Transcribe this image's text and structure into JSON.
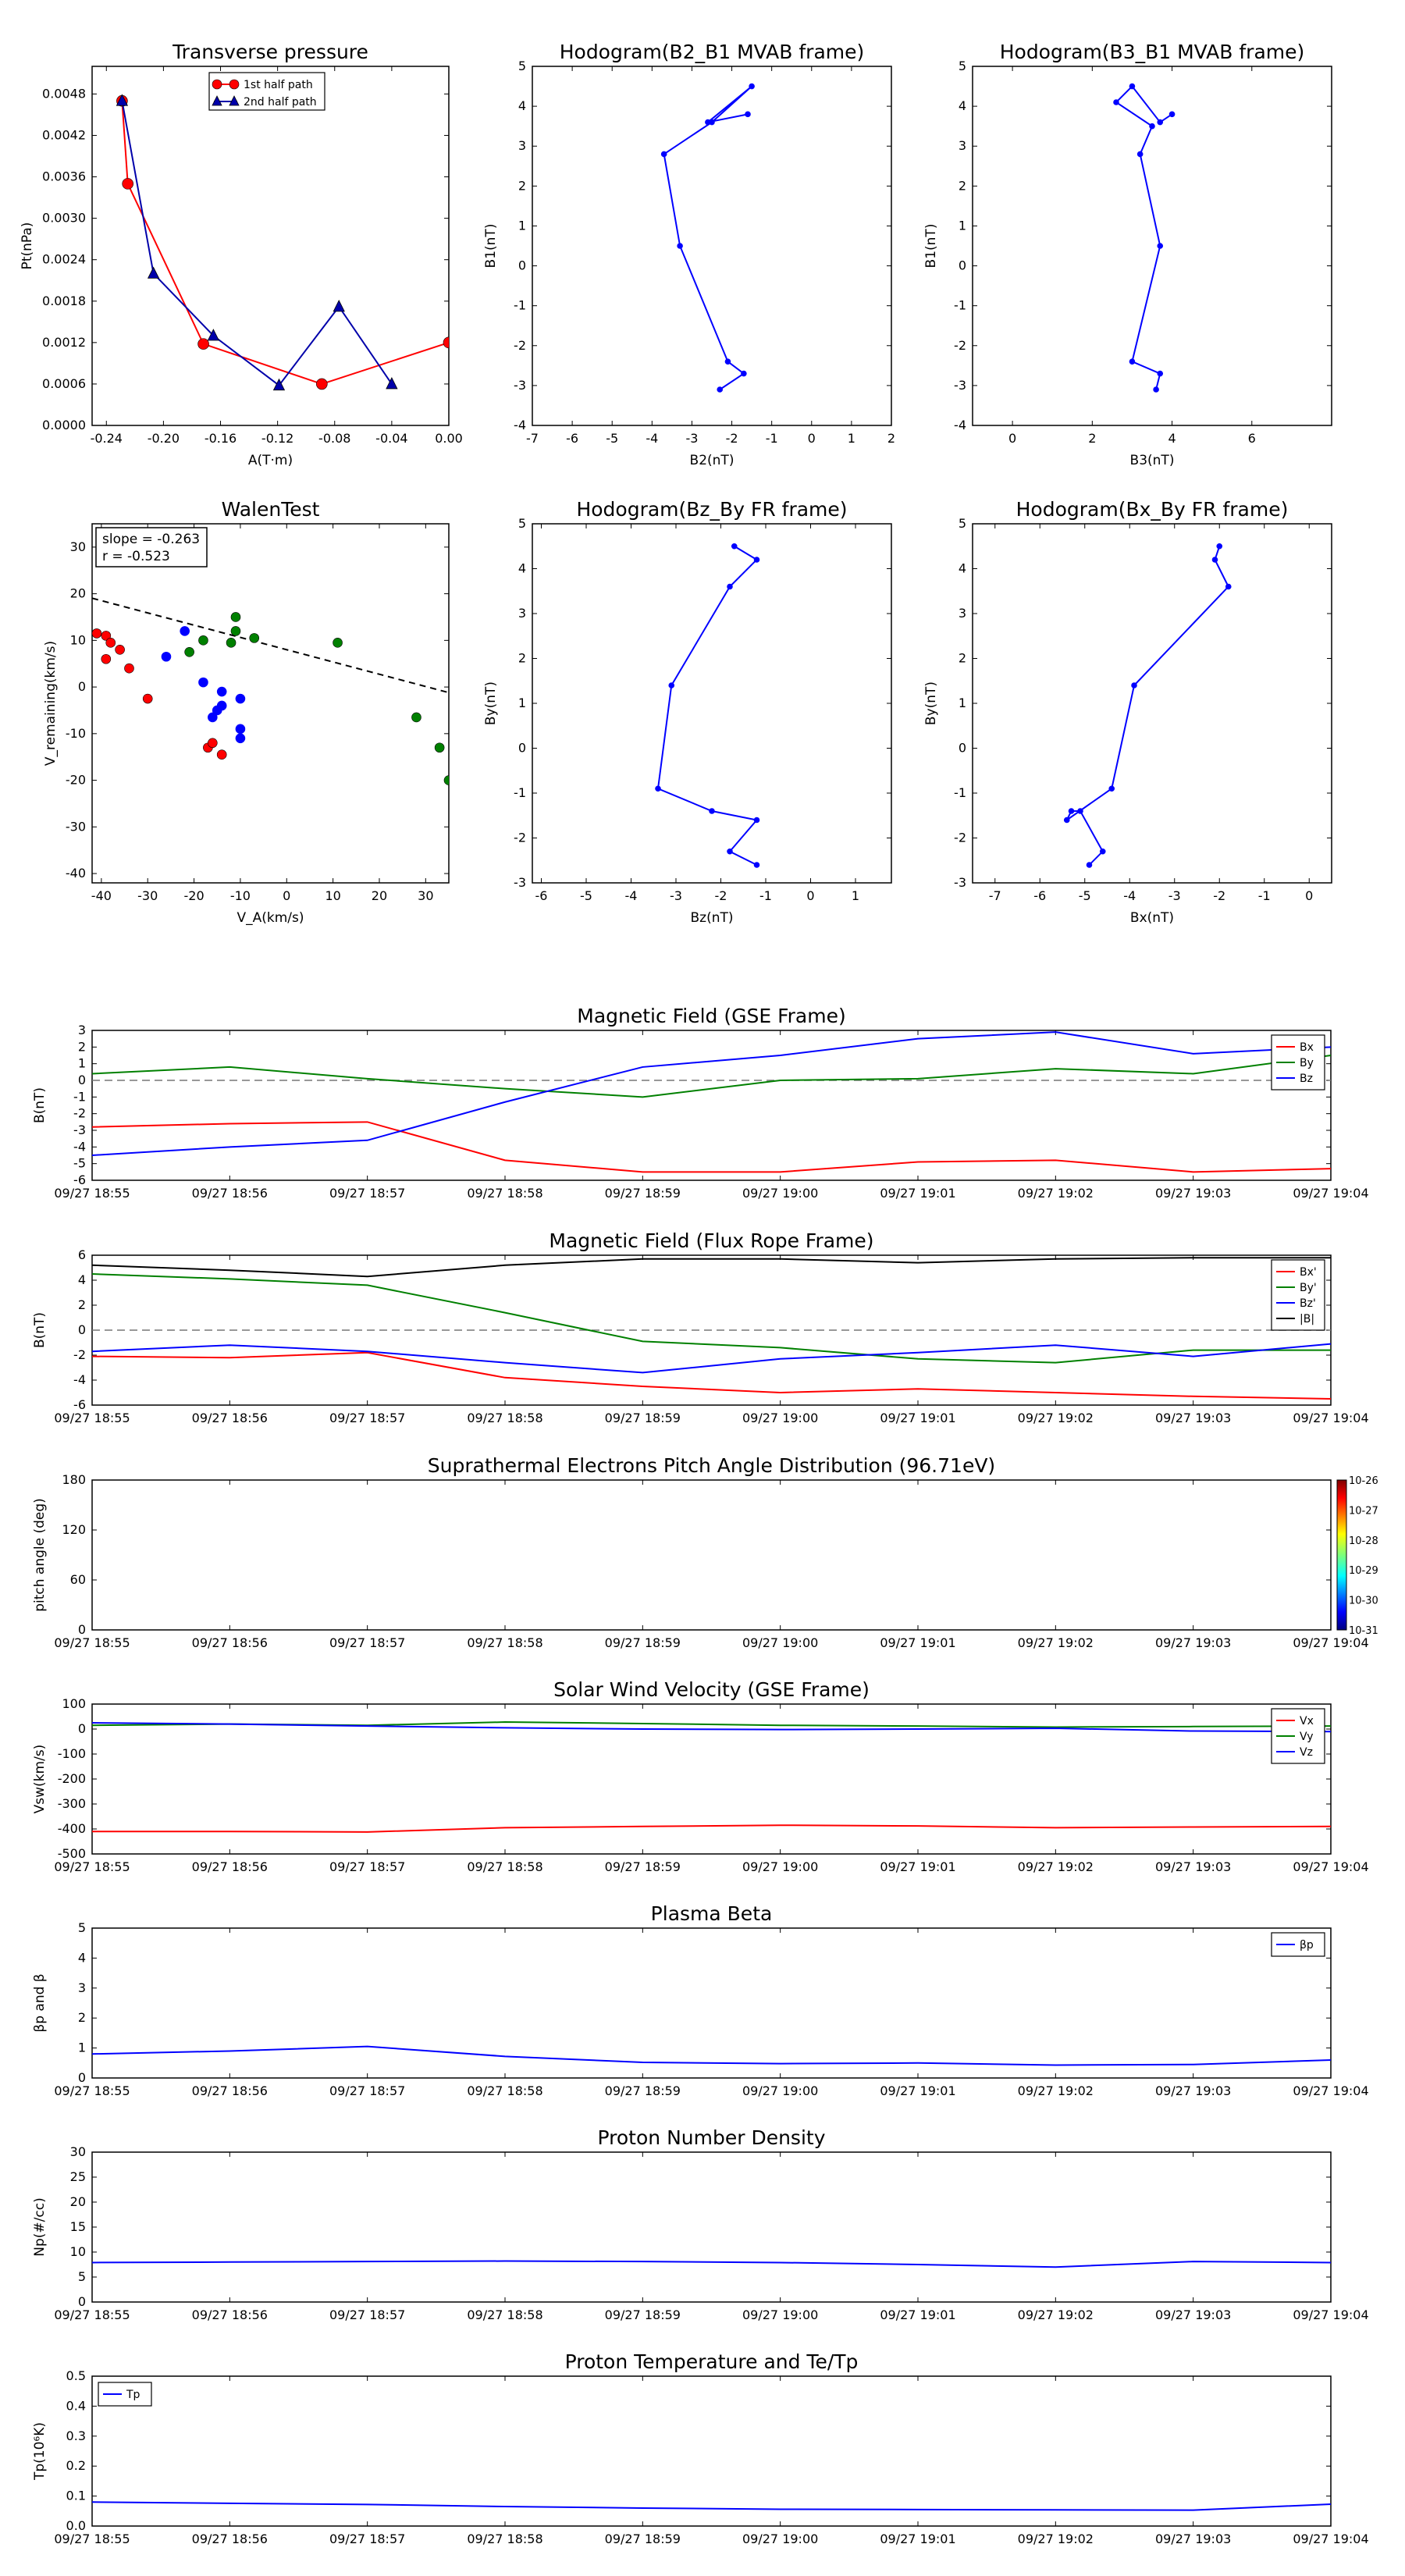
{
  "figure": {
    "time_ticks": [
      "09/27 18:55",
      "09/27 18:56",
      "09/27 18:57",
      "09/27 18:58",
      "09/27 18:59",
      "09/27 19:00",
      "09/27 19:01",
      "09/27 19:02",
      "09/27 19:03",
      "09/27 19:04"
    ]
  },
  "chart_data": [
    {
      "id": "transverse-pressure",
      "type": "line",
      "title": "Transverse pressure",
      "xlabel": "A(T·m)",
      "ylabel": "Pt(nPa)",
      "xlim": [
        -0.25,
        0.0
      ],
      "ylim": [
        0,
        0.0052
      ],
      "xticks": [
        "-0.24",
        "-0.20",
        "-0.16",
        "-0.12",
        "-0.08",
        "-0.04",
        "0.00"
      ],
      "yticks": [
        "0.0000",
        "0.0006",
        "0.0012",
        "0.0018",
        "0.0024",
        "0.0030",
        "0.0036",
        "0.0042",
        "0.0048"
      ],
      "legend": "upper-center",
      "series": [
        {
          "name": "1st half path",
          "color": "#ff0000",
          "marker": "circle",
          "x": [
            -0.229,
            -0.225,
            -0.172,
            -0.089,
            0.0
          ],
          "y": [
            0.0047,
            0.0035,
            0.00118,
            0.0006,
            0.0012
          ]
        },
        {
          "name": "2nd half path",
          "color": "#0000aa",
          "marker": "triangle",
          "x": [
            -0.229,
            -0.207,
            -0.165,
            -0.119,
            -0.077,
            -0.04
          ],
          "y": [
            0.0047,
            0.0022,
            0.0013,
            0.00058,
            0.00172,
            0.0006
          ]
        }
      ]
    },
    {
      "id": "hodogram-b2-b1",
      "type": "line",
      "title": "Hodogram(B2_B1 MVAB frame)",
      "xlabel": "B2(nT)",
      "ylabel": "B1(nT)",
      "xlim": [
        -7,
        2
      ],
      "ylim": [
        -4,
        5
      ],
      "xticks": [
        "-7",
        "-6",
        "-5",
        "-4",
        "-3",
        "-2",
        "-1",
        "0",
        "1",
        "2"
      ],
      "yticks": [
        "-4",
        "-3",
        "-2",
        "-1",
        "0",
        "1",
        "2",
        "3",
        "4",
        "5"
      ],
      "series": [
        {
          "color": "#0000ff",
          "x": [
            -2.3,
            -1.7,
            -2.1,
            -3.3,
            -3.7,
            -2.5,
            -1.5,
            -2.6,
            -1.6
          ],
          "y": [
            -3.1,
            -2.7,
            -2.4,
            0.5,
            2.8,
            3.6,
            4.5,
            3.6,
            3.8
          ]
        }
      ]
    },
    {
      "id": "hodogram-b3-b1",
      "type": "line",
      "title": "Hodogram(B3_B1 MVAB frame)",
      "xlabel": "B3(nT)",
      "ylabel": "B1(nT)",
      "xlim": [
        -1,
        8
      ],
      "ylim": [
        -4,
        5
      ],
      "xticks": [
        "0",
        "2",
        "4",
        "6"
      ],
      "yticks": [
        "-4",
        "-3",
        "-2",
        "-1",
        "0",
        "1",
        "2",
        "3",
        "4",
        "5"
      ],
      "series": [
        {
          "color": "#0000ff",
          "x": [
            3.6,
            3.7,
            3.0,
            3.7,
            3.2,
            3.5,
            2.6,
            3.0,
            3.7,
            4.0
          ],
          "y": [
            -3.1,
            -2.7,
            -2.4,
            0.5,
            2.8,
            3.5,
            4.1,
            4.5,
            3.6,
            3.8
          ]
        }
      ]
    },
    {
      "id": "walen-test",
      "type": "scatter",
      "title": "WalenTest",
      "xlabel": "V_A(km/s)",
      "ylabel": "V_remaining(km/s)",
      "xlim": [
        -42,
        35
      ],
      "ylim": [
        -42,
        35
      ],
      "xticks": [
        "-40",
        "-30",
        "-20",
        "-10",
        "0",
        "10",
        "20",
        "30"
      ],
      "yticks": [
        "-40",
        "-30",
        "-20",
        "-10",
        "0",
        "10",
        "20",
        "30"
      ],
      "annotation": [
        "slope = -0.263",
        "r = -0.523"
      ],
      "fit": {
        "slope": -0.263,
        "intercept": 8.0,
        "style": "dashed",
        "color": "#000000"
      },
      "series": [
        {
          "color": "#ff0000",
          "x": [
            -41,
            -39,
            -38,
            -39,
            -36,
            -34,
            -30,
            -17,
            -16,
            -14
          ],
          "y": [
            11.5,
            11.0,
            9.5,
            6.0,
            8.0,
            4.0,
            -2.5,
            -13.0,
            -12.0,
            -14.5
          ]
        },
        {
          "color": "#0000ff",
          "x": [
            -22,
            -26,
            -18,
            -14,
            -15,
            -10,
            -16,
            -14,
            -10,
            -10
          ],
          "y": [
            12.0,
            6.5,
            1.0,
            -1.0,
            -5.0,
            -2.5,
            -6.5,
            -4.0,
            -9.0,
            -11.0
          ]
        },
        {
          "color": "#008000",
          "x": [
            -18,
            -21,
            -12,
            -11,
            -11,
            -7,
            11,
            28,
            33,
            35
          ],
          "y": [
            10.0,
            7.5,
            9.5,
            12.0,
            15.0,
            10.5,
            9.5,
            -6.5,
            -13.0,
            -20.0
          ]
        }
      ]
    },
    {
      "id": "hodogram-bz-by",
      "type": "line",
      "title": "Hodogram(Bz_By FR frame)",
      "xlabel": "Bz(nT)",
      "ylabel": "By(nT)",
      "xlim": [
        -6.2,
        1.8
      ],
      "ylim": [
        -3,
        5
      ],
      "xticks": [
        "-6",
        "-5",
        "-4",
        "-3",
        "-2",
        "-1",
        "0",
        "1"
      ],
      "yticks": [
        "-3",
        "-2",
        "-1",
        "0",
        "1",
        "2",
        "3",
        "4",
        "5"
      ],
      "series": [
        {
          "color": "#0000ff",
          "x": [
            -1.2,
            -1.8,
            -1.2,
            -2.2,
            -3.4,
            -3.1,
            -1.8,
            -1.2,
            -1.7
          ],
          "y": [
            -2.6,
            -2.3,
            -1.6,
            -1.4,
            -0.9,
            1.4,
            3.6,
            4.2,
            4.5
          ]
        }
      ]
    },
    {
      "id": "hodogram-bx-by",
      "type": "line",
      "title": "Hodogram(Bx_By FR frame)",
      "xlabel": "Bx(nT)",
      "ylabel": "By(nT)",
      "xlim": [
        -7.5,
        0.5
      ],
      "ylim": [
        -3,
        5
      ],
      "xticks": [
        "-7",
        "-6",
        "-5",
        "-4",
        "-3",
        "-2",
        "-1",
        "0"
      ],
      "yticks": [
        "-3",
        "-2",
        "-1",
        "0",
        "1",
        "2",
        "3",
        "4",
        "5"
      ],
      "series": [
        {
          "color": "#0000ff",
          "x": [
            -4.9,
            -4.6,
            -5.1,
            -5.3,
            -5.4,
            -4.4,
            -3.9,
            -1.8,
            -2.1,
            -2.0
          ],
          "y": [
            -2.6,
            -2.3,
            -1.4,
            -1.4,
            -1.6,
            -0.9,
            1.4,
            3.6,
            4.2,
            4.5
          ]
        }
      ]
    },
    {
      "id": "mag-gse",
      "type": "line",
      "title": "Magnetic Field (GSE Frame)",
      "ylabel": "B(nT)",
      "ylim": [
        -6,
        3
      ],
      "zero_line": true,
      "legend": "top-right",
      "yticks": [
        "-6",
        "-5",
        "-4",
        "-3",
        "-2",
        "-1",
        "0",
        "1",
        "2",
        "3"
      ],
      "x": [
        0,
        1,
        2,
        3,
        4,
        5,
        6,
        7,
        8,
        9
      ],
      "series": [
        {
          "name": "Bx",
          "color": "#ff0000",
          "values": [
            -2.8,
            -2.6,
            -2.5,
            -4.8,
            -5.5,
            -5.5,
            -4.9,
            -4.8,
            -5.5,
            -5.3
          ]
        },
        {
          "name": "By",
          "color": "#008000",
          "values": [
            0.4,
            0.8,
            0.1,
            -0.5,
            -1.0,
            0.0,
            0.1,
            0.7,
            0.4,
            1.5
          ]
        },
        {
          "name": "Bz",
          "color": "#0000ff",
          "values": [
            -4.5,
            -4.0,
            -3.6,
            -1.3,
            0.8,
            1.5,
            2.5,
            2.9,
            1.6,
            2.0
          ]
        }
      ]
    },
    {
      "id": "mag-fr",
      "type": "line",
      "title": "Magnetic Field (Flux Rope Frame)",
      "ylabel": "B(nT)",
      "ylim": [
        -6,
        6
      ],
      "zero_line": true,
      "legend": "top-right",
      "yticks": [
        "-6",
        "-4",
        "-2",
        "0",
        "2",
        "4",
        "6"
      ],
      "x": [
        0,
        1,
        2,
        3,
        4,
        5,
        6,
        7,
        8,
        9
      ],
      "series": [
        {
          "name": "Bx'",
          "color": "#ff0000",
          "values": [
            -2.1,
            -2.2,
            -1.8,
            -3.8,
            -4.5,
            -5.0,
            -4.7,
            -5.0,
            -5.3,
            -5.5
          ]
        },
        {
          "name": "By'",
          "color": "#008000",
          "values": [
            4.5,
            4.1,
            3.6,
            1.4,
            -0.9,
            -1.4,
            -2.3,
            -2.6,
            -1.6,
            -1.6
          ]
        },
        {
          "name": "Bz'",
          "color": "#0000ff",
          "values": [
            -1.7,
            -1.2,
            -1.7,
            -2.6,
            -3.4,
            -2.3,
            -1.8,
            -1.2,
            -2.1,
            -1.1
          ]
        },
        {
          "name": "|B|",
          "color": "#000000",
          "values": [
            5.2,
            4.8,
            4.3,
            5.2,
            5.7,
            5.7,
            5.4,
            5.7,
            5.8,
            5.8
          ]
        }
      ]
    },
    {
      "id": "pitch-angle",
      "type": "heatmap",
      "title": "Suprathermal Electrons Pitch Angle Distribution (96.71eV)",
      "ylabel": "pitch angle (deg)",
      "ylim": [
        0,
        180
      ],
      "yticks": [
        "0",
        "60",
        "120",
        "180"
      ],
      "colorbar_ticks": [
        "10-26",
        "10-27",
        "10-28",
        "10-29",
        "10-30",
        "10-31"
      ]
    },
    {
      "id": "sw-velocity",
      "type": "line",
      "title": "Solar Wind Velocity (GSE Frame)",
      "ylabel": "Vsw(km/s)",
      "ylim": [
        -500,
        100
      ],
      "legend": "top-right",
      "yticks": [
        "-500",
        "-400",
        "-300",
        "-200",
        "-100",
        "0",
        "100"
      ],
      "x": [
        0,
        1,
        2,
        3,
        4,
        5,
        6,
        7,
        8,
        9
      ],
      "series": [
        {
          "name": "Vx",
          "color": "#ff0000",
          "values": [
            -410,
            -410,
            -412,
            -395,
            -390,
            -385,
            -388,
            -395,
            -392,
            -390
          ]
        },
        {
          "name": "Vy",
          "color": "#008000",
          "values": [
            15,
            20,
            15,
            28,
            22,
            15,
            12,
            8,
            10,
            12
          ]
        },
        {
          "name": "Vz",
          "color": "#0000ff",
          "values": [
            25,
            20,
            12,
            5,
            0,
            -2,
            0,
            3,
            -8,
            -10
          ]
        }
      ]
    },
    {
      "id": "plasma-beta",
      "type": "line",
      "title": "Plasma Beta",
      "ylabel": "βp and β",
      "ylim": [
        0,
        5
      ],
      "legend": "top-right",
      "yticks": [
        "0",
        "1",
        "2",
        "3",
        "4",
        "5"
      ],
      "x": [
        0,
        1,
        2,
        3,
        4,
        5,
        6,
        7,
        8,
        9
      ],
      "series": [
        {
          "name": "βp",
          "color": "#0000ff",
          "values": [
            0.8,
            0.9,
            1.05,
            0.72,
            0.52,
            0.48,
            0.5,
            0.43,
            0.45,
            0.6
          ]
        }
      ]
    },
    {
      "id": "proton-density",
      "type": "line",
      "title": "Proton Number Density",
      "ylabel": "Np(#/cc)",
      "ylim": [
        0,
        30
      ],
      "yticks": [
        "0",
        "5",
        "10",
        "15",
        "20",
        "25",
        "30"
      ],
      "x": [
        0,
        1,
        2,
        3,
        4,
        5,
        6,
        7,
        8,
        9
      ],
      "series": [
        {
          "color": "#0000ff",
          "values": [
            7.9,
            8.0,
            8.1,
            8.2,
            8.1,
            7.9,
            7.5,
            7.0,
            8.1,
            7.9
          ]
        }
      ]
    },
    {
      "id": "proton-temperature",
      "type": "line",
      "title": "Proton Temperature and Te/Tp",
      "ylabel": "Tp(10⁶K)",
      "ylim": [
        0,
        0.5
      ],
      "legend": "top-left",
      "yticks": [
        "0.0",
        "0.1",
        "0.2",
        "0.3",
        "0.4",
        "0.5"
      ],
      "x": [
        0,
        1,
        2,
        3,
        4,
        5,
        6,
        7,
        8,
        9
      ],
      "series": [
        {
          "name": "Tp",
          "color": "#0000ff",
          "values": [
            0.08,
            0.076,
            0.072,
            0.065,
            0.06,
            0.056,
            0.055,
            0.054,
            0.053,
            0.073
          ]
        }
      ]
    }
  ]
}
